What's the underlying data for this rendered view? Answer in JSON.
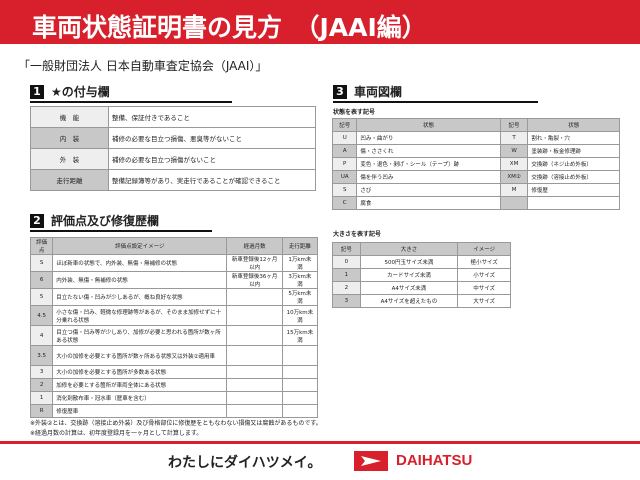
{
  "title": "車両状態証明書の見方　（JAAI編）",
  "organization": "「一般財団法人 日本自動車査定協会（JAAI）」",
  "section1": {
    "num": "1",
    "title": "★の付与欄",
    "rows": [
      [
        "機　能",
        "整備、保証付きであること"
      ],
      [
        "内　装",
        "補修の必要な目立つ損傷、悪臭等がないこと"
      ],
      [
        "外　装",
        "補修の必要な目立つ損傷がないこと"
      ],
      [
        "走行距離",
        "整備記録簿等があり、実走行であることが確認できること"
      ]
    ]
  },
  "section2": {
    "num": "2",
    "title": "評価点及び修復歴欄",
    "headers": [
      "評価点",
      "評価点設定イメージ",
      "経過月数",
      "走行距離"
    ],
    "rows": [
      [
        "S",
        "ほぼ新車の状態で、内外装、無傷・無補修の状態",
        "新車登録後12ヶ月以内",
        "1万km未満"
      ],
      [
        "6",
        "内外装、無傷・無補修の状態",
        "新車登録後36ヶ月以内",
        "3万km未満"
      ],
      [
        "5",
        "目立たない傷・凹みが少しあるが、概ね良好な状態",
        "",
        "5万km未満"
      ],
      [
        "4.5",
        "小さな傷・凹み、軽微な修理跡等があるが、そのまま加修せずに十分乗れる状態",
        "",
        "10万km未満"
      ],
      [
        "4",
        "目立つ傷・凹み等が少しあり、加修が必要と思われる箇所が数ヶ所ある状態",
        "",
        "15万km未満"
      ],
      [
        "3.5",
        "大小の加修を必要とする箇所が数ヶ所ある状態又は外装②適用車",
        "",
        ""
      ],
      [
        "3",
        "大小の加修を必要とする箇所が多数ある状態",
        "",
        ""
      ],
      [
        "2",
        "加修を必要とする箇所が車両全体にある状態",
        "",
        ""
      ],
      [
        "1",
        "消化剤散布車・冠水車（歴車を含む）",
        "",
        ""
      ],
      [
        "R",
        "修復歴車",
        "",
        ""
      ]
    ]
  },
  "notes": [
    "※外装②とは、交換跡（溶接止め外装）及び骨格部位に修復歴をともなわない損傷又は腐蝕があるものです。",
    "※経過月数の計算は、初年度登録月を一ヶ月として計算します。"
  ],
  "section3": {
    "num": "3",
    "title": "車両図欄",
    "state_label": "状態を表す記号",
    "state_headers": [
      "記号",
      "状態",
      "記号",
      "状態"
    ],
    "state_rows": [
      [
        "U",
        "凹み・曲がり",
        "T",
        "割れ・亀裂・穴"
      ],
      [
        "A",
        "傷・ささくれ",
        "W",
        "塗装跡・板金修理跡"
      ],
      [
        "P",
        "変色・退色・剥げ・シール（テープ）跡",
        "XM",
        "交換跡（ネジ止め外板）"
      ],
      [
        "UA",
        "傷を伴う凹み",
        "XM②",
        "交換跡（溶接止め外板）"
      ],
      [
        "S",
        "さび",
        "M",
        "修復歴"
      ],
      [
        "C",
        "腐食",
        "",
        ""
      ]
    ],
    "size_label": "大きさを表す記号",
    "size_headers": [
      "記号",
      "大きさ",
      "イメージ"
    ],
    "size_rows": [
      [
        "0",
        "500円玉サイズ未満",
        "極小サイズ"
      ],
      [
        "1",
        "カードサイズ未満",
        "小サイズ"
      ],
      [
        "2",
        "A4サイズ未満",
        "中サイズ"
      ],
      [
        "3",
        "A4サイズを超えたもの",
        "大サイズ"
      ]
    ]
  },
  "footer": {
    "slogan": "わたしにダイハツメイ。",
    "brand": "DAIHATSU"
  }
}
